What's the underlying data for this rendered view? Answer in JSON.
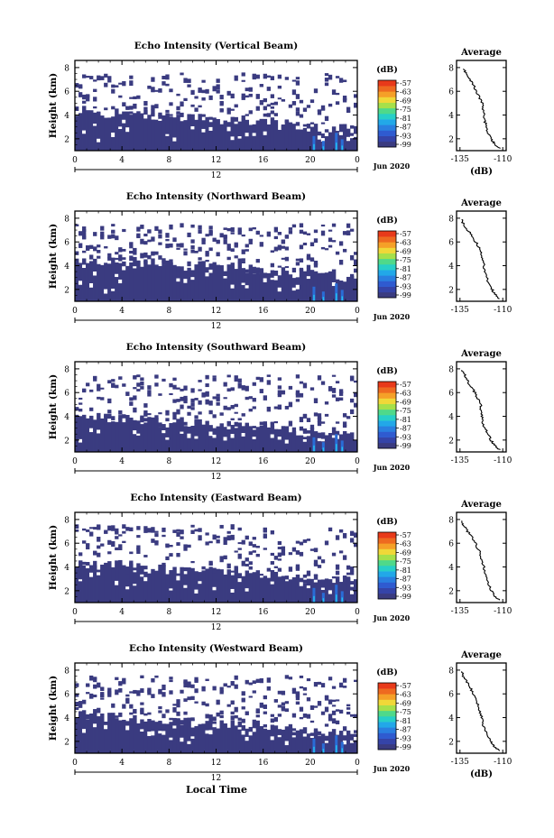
{
  "figure": {
    "bottom_xlabel": "Local Time",
    "date_label": "Jun 2020",
    "day_label": "12",
    "average_title": "Average",
    "average_xlabel": "(dB)"
  },
  "chart_data": [
    {
      "type": "heatmap",
      "title": "Echo Intensity (Vertical Beam)",
      "ylabel": "Height (km)",
      "x": [
        0,
        4,
        8,
        12,
        16,
        20,
        0
      ],
      "y_ticks": [
        2,
        4,
        6,
        8
      ],
      "colorbar_unit": "(dB)",
      "colorbar_ticks": [
        -57,
        -63,
        -69,
        -75,
        -81,
        -87,
        -93,
        -99
      ],
      "colors": {
        "low": "#3a3b80",
        "mid": "#2a6cd6",
        "high": "#e83a1a"
      },
      "average": {
        "x_ticks": [
          -135,
          -110
        ],
        "y_ticks": [
          2,
          4,
          6,
          8
        ],
        "profile": [
          [
            -112,
            1.2
          ],
          [
            -115,
            1.6
          ],
          [
            -117,
            2.0
          ],
          [
            -119,
            2.6
          ],
          [
            -120,
            3.2
          ],
          [
            -121,
            3.8
          ],
          [
            -121.5,
            4.4
          ],
          [
            -122,
            5.0
          ],
          [
            -124,
            5.6
          ],
          [
            -126,
            6.2
          ],
          [
            -128,
            6.8
          ],
          [
            -131,
            7.4
          ],
          [
            -133,
            7.9
          ]
        ]
      },
      "echo_top": [
        4.4,
        4.3,
        4.2,
        4.1,
        4.1,
        4.0,
        3.9,
        3.8,
        3.9,
        3.8,
        3.7,
        3.6,
        3.5,
        3.6,
        3.4,
        3.3,
        3.4,
        3.2,
        3.1,
        3.0,
        2.9,
        3.0,
        2.8,
        2.7
      ]
    },
    {
      "type": "heatmap",
      "title": "Echo Intensity (Northward Beam)",
      "ylabel": "Height (km)",
      "x": [
        0,
        4,
        8,
        12,
        16,
        20,
        0
      ],
      "y_ticks": [
        2,
        4,
        6,
        8
      ],
      "colorbar_unit": "(dB)",
      "colorbar_ticks": [
        -57,
        -63,
        -69,
        -75,
        -81,
        -87,
        -93,
        -99
      ],
      "colors": {
        "low": "#3a3b80",
        "mid": "#2a6cd6",
        "high": "#e83a1a"
      },
      "average": {
        "x_ticks": [
          -135,
          -110
        ],
        "y_ticks": [
          2,
          4,
          6,
          8
        ],
        "profile": [
          [
            -112,
            1.2
          ],
          [
            -115,
            1.7
          ],
          [
            -117,
            2.2
          ],
          [
            -119,
            2.8
          ],
          [
            -120,
            3.4
          ],
          [
            -121,
            4.0
          ],
          [
            -122,
            4.6
          ],
          [
            -123,
            5.2
          ],
          [
            -125,
            5.8
          ],
          [
            -127,
            6.3
          ],
          [
            -130,
            6.9
          ],
          [
            -133,
            7.5
          ],
          [
            -134,
            7.9
          ]
        ]
      },
      "echo_top": [
        4.6,
        4.5,
        4.4,
        4.5,
        4.3,
        4.3,
        4.2,
        4.1,
        4.2,
        4.0,
        4.0,
        3.9,
        3.8,
        3.9,
        3.7,
        3.6,
        3.7,
        3.5,
        3.4,
        3.3,
        3.2,
        3.3,
        3.1,
        3.0
      ]
    },
    {
      "type": "heatmap",
      "title": "Echo Intensity (Southward Beam)",
      "ylabel": "Height (km)",
      "x": [
        0,
        4,
        8,
        12,
        16,
        20,
        0
      ],
      "y_ticks": [
        2,
        4,
        6,
        8
      ],
      "colorbar_unit": "(dB)",
      "colorbar_ticks": [
        -57,
        -63,
        -69,
        -75,
        -81,
        -87,
        -93,
        -99
      ],
      "colors": {
        "low": "#3a3b80",
        "mid": "#2a6cd6",
        "high": "#e83a1a"
      },
      "average": {
        "x_ticks": [
          -135,
          -110
        ],
        "y_ticks": [
          2,
          4,
          6,
          8
        ],
        "profile": [
          [
            -112,
            1.2
          ],
          [
            -115,
            1.6
          ],
          [
            -117,
            2.0
          ],
          [
            -119,
            2.6
          ],
          [
            -121,
            3.2
          ],
          [
            -122,
            3.8
          ],
          [
            -122.5,
            4.4
          ],
          [
            -123,
            5.0
          ],
          [
            -125,
            5.6
          ],
          [
            -127,
            6.2
          ],
          [
            -130,
            6.8
          ],
          [
            -132,
            7.4
          ],
          [
            -134,
            7.9
          ]
        ]
      },
      "echo_top": [
        4.0,
        3.9,
        3.8,
        3.9,
        3.7,
        3.7,
        3.6,
        3.5,
        3.6,
        3.4,
        3.4,
        3.3,
        3.2,
        3.3,
        3.1,
        3.0,
        3.1,
        2.9,
        2.8,
        2.7,
        2.6,
        2.7,
        2.5,
        2.4
      ]
    },
    {
      "type": "heatmap",
      "title": "Echo Intensity (Eastward Beam)",
      "ylabel": "Height (km)",
      "x": [
        0,
        4,
        8,
        12,
        16,
        20,
        0
      ],
      "y_ticks": [
        2,
        4,
        6,
        8
      ],
      "colorbar_unit": "(dB)",
      "colorbar_ticks": [
        -57,
        -63,
        -69,
        -75,
        -81,
        -87,
        -93,
        -99
      ],
      "colors": {
        "low": "#3a3b80",
        "mid": "#2a6cd6",
        "high": "#e83a1a"
      },
      "average": {
        "x_ticks": [
          -135,
          -110
        ],
        "y_ticks": [
          2,
          4,
          6,
          8
        ],
        "profile": [
          [
            -112,
            1.2
          ],
          [
            -115,
            1.6
          ],
          [
            -117,
            2.1
          ],
          [
            -119,
            2.7
          ],
          [
            -120,
            3.3
          ],
          [
            -121,
            3.9
          ],
          [
            -122,
            4.5
          ],
          [
            -123,
            5.1
          ],
          [
            -125,
            5.7
          ],
          [
            -127,
            6.3
          ],
          [
            -130,
            6.9
          ],
          [
            -133,
            7.5
          ],
          [
            -134,
            7.9
          ]
        ]
      },
      "echo_top": [
        4.3,
        4.2,
        4.1,
        4.2,
        4.0,
        4.0,
        3.9,
        3.8,
        3.9,
        3.7,
        3.7,
        3.6,
        3.5,
        3.6,
        3.4,
        3.3,
        3.4,
        3.2,
        3.1,
        3.0,
        2.9,
        3.0,
        2.8,
        2.7
      ]
    },
    {
      "type": "heatmap",
      "title": "Echo Intensity (Westward Beam)",
      "ylabel": "Height (km)",
      "x": [
        0,
        4,
        8,
        12,
        16,
        20,
        0
      ],
      "y_ticks": [
        2,
        4,
        6,
        8
      ],
      "colorbar_unit": "(dB)",
      "colorbar_ticks": [
        -57,
        -63,
        -69,
        -75,
        -81,
        -87,
        -93,
        -99
      ],
      "colors": {
        "low": "#3a3b80",
        "mid": "#2a6cd6",
        "high": "#e83a1a"
      },
      "average": {
        "x_ticks": [
          -135,
          -110
        ],
        "y_ticks": [
          2,
          4,
          6,
          8
        ],
        "profile": [
          [
            -112,
            1.2
          ],
          [
            -115,
            1.6
          ],
          [
            -117,
            2.0
          ],
          [
            -119,
            2.6
          ],
          [
            -121,
            3.2
          ],
          [
            -122,
            3.8
          ],
          [
            -123,
            4.4
          ],
          [
            -124,
            5.0
          ],
          [
            -126,
            5.6
          ],
          [
            -128,
            6.2
          ],
          [
            -130,
            6.8
          ],
          [
            -133,
            7.4
          ],
          [
            -134,
            7.9
          ]
        ]
      },
      "echo_top": [
        4.2,
        4.1,
        4.0,
        4.1,
        3.9,
        3.9,
        3.8,
        3.7,
        3.8,
        3.6,
        3.6,
        3.5,
        3.4,
        3.5,
        3.3,
        3.2,
        3.3,
        3.1,
        3.0,
        2.9,
        2.8,
        2.9,
        2.7,
        2.6
      ]
    }
  ]
}
